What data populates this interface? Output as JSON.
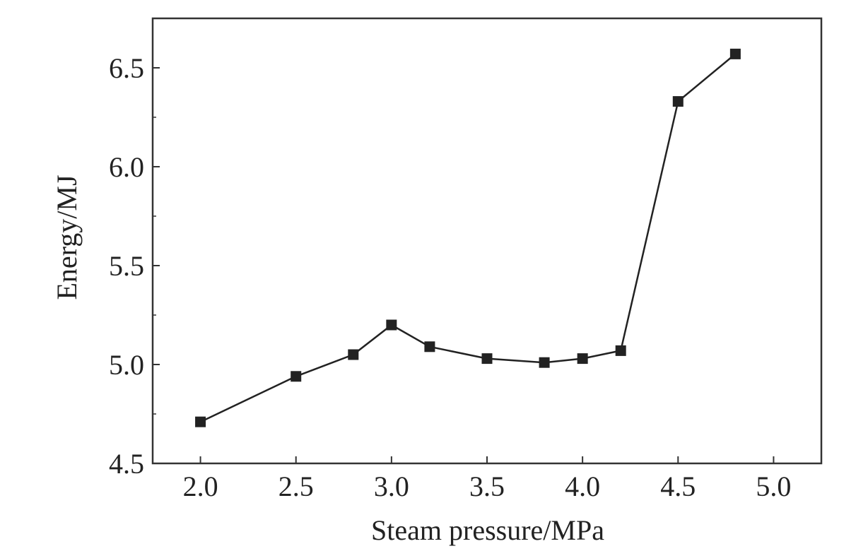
{
  "chart_data": {
    "type": "line",
    "title": "",
    "xlabel": "Steam pressure/MPa",
    "ylabel": "Energy/MJ",
    "xlim": [
      1.75,
      5.25
    ],
    "ylim": [
      4.5,
      6.75
    ],
    "x_ticks": [
      2.0,
      2.5,
      3.0,
      3.5,
      4.0,
      4.5,
      5.0
    ],
    "x_tick_labels": [
      "2.0",
      "2.5",
      "3.0",
      "3.5",
      "4.0",
      "4.5",
      "5.0"
    ],
    "y_ticks": [
      4.5,
      5.0,
      5.5,
      6.0,
      6.5
    ],
    "y_tick_labels": [
      "4.5",
      "5.0",
      "5.5",
      "6.0",
      "6.5"
    ],
    "grid": false,
    "legend": "none",
    "marker": "square",
    "colors": {
      "line": "#222222",
      "marker": "#222222",
      "axis": "#333333"
    },
    "series": [
      {
        "name": "Energy",
        "x": [
          2.0,
          2.5,
          2.8,
          3.0,
          3.2,
          3.5,
          3.8,
          4.0,
          4.2,
          4.5,
          4.8
        ],
        "values": [
          4.71,
          4.94,
          5.05,
          5.2,
          5.09,
          5.03,
          5.01,
          5.03,
          5.07,
          6.33,
          6.57
        ]
      }
    ]
  }
}
